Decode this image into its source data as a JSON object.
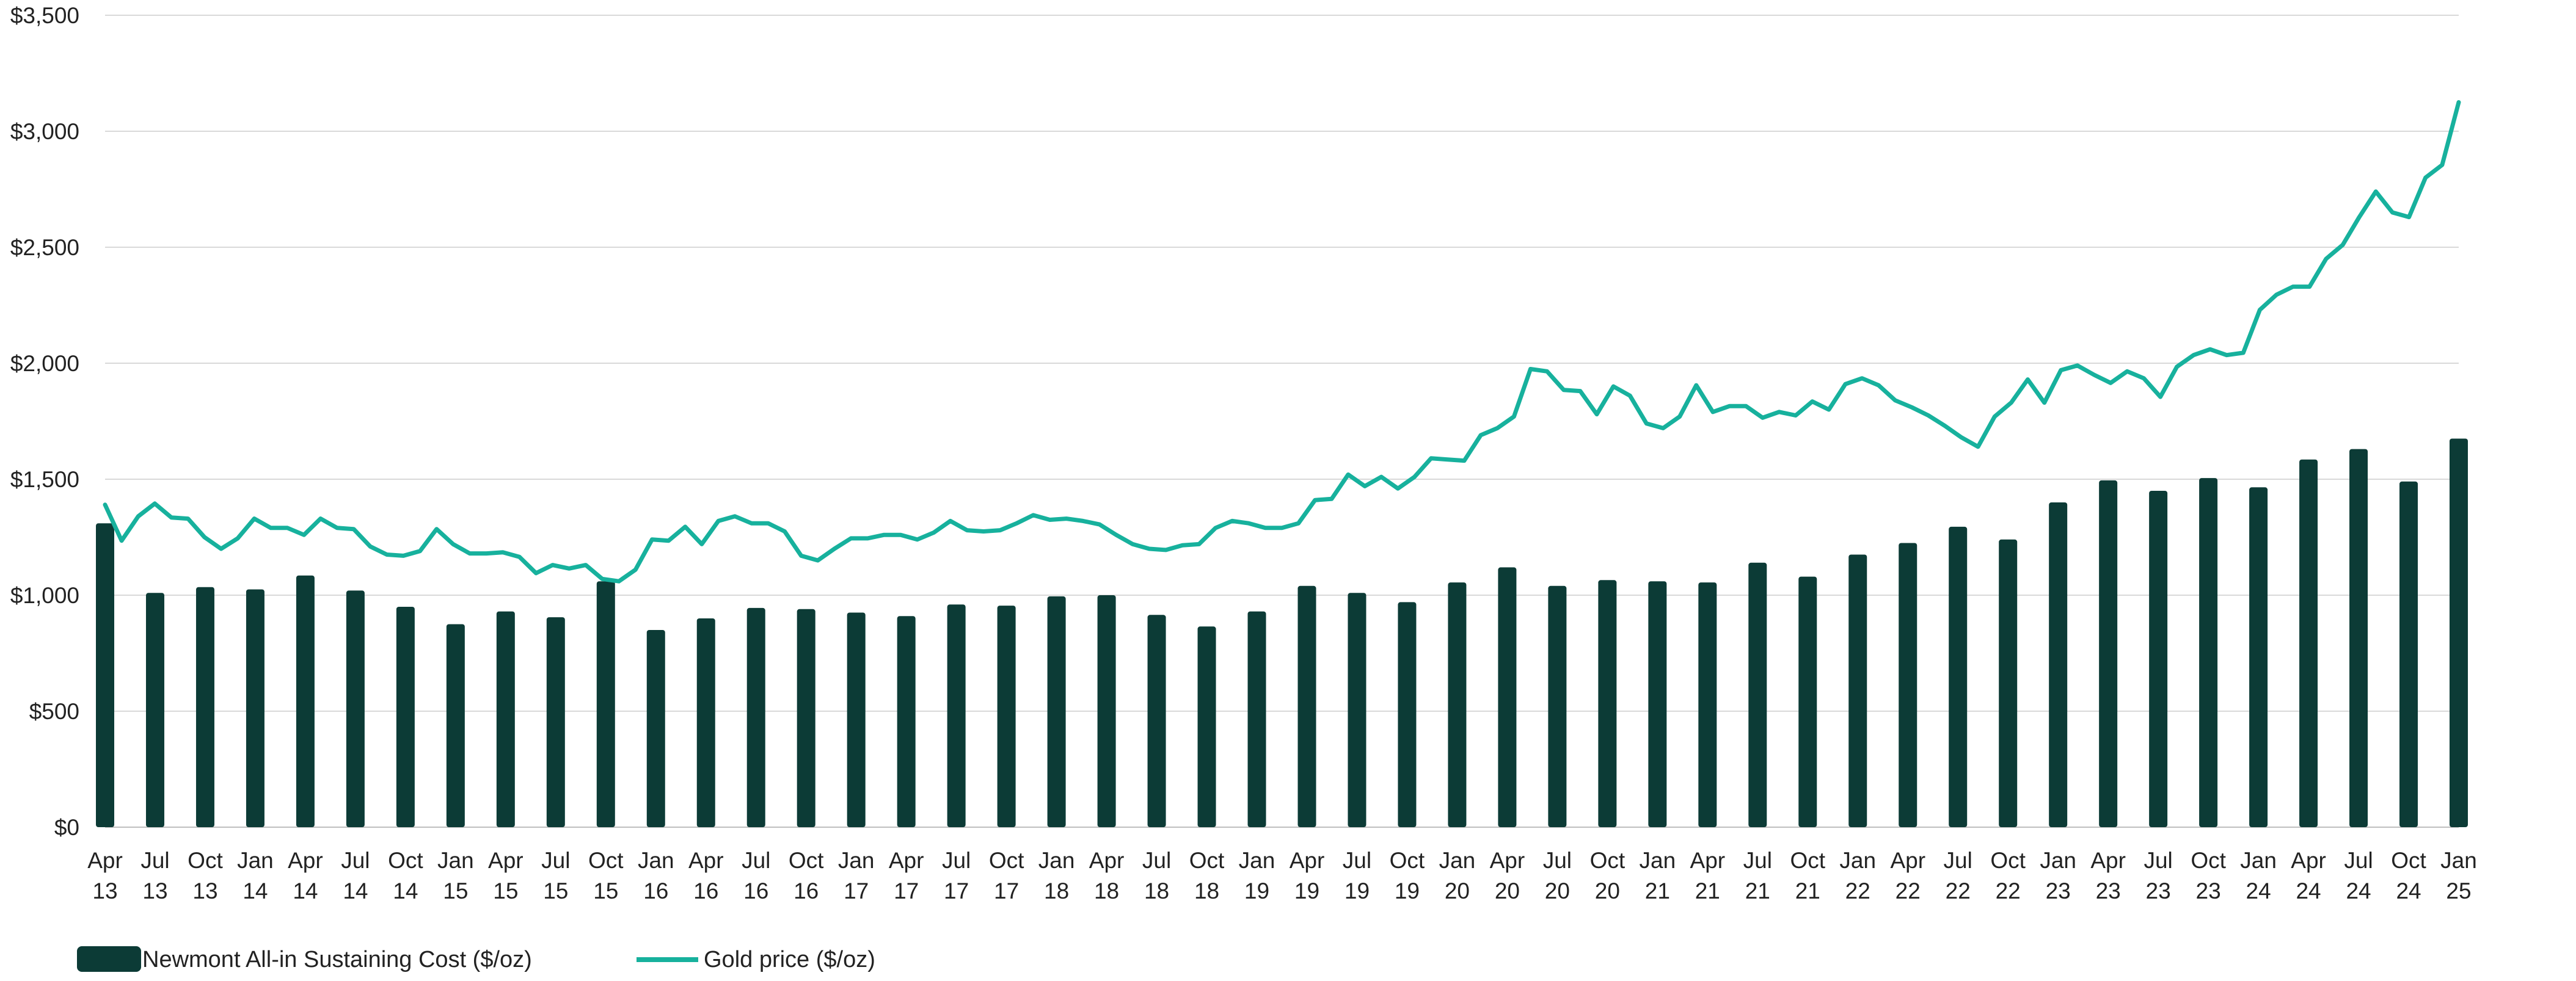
{
  "chart_data": {
    "type": "bar",
    "title": "",
    "xlabel": "",
    "ylabel": "",
    "ylim": [
      0,
      3500
    ],
    "y_ticks": [
      0,
      500,
      1000,
      1500,
      2000,
      2500,
      3000,
      3500
    ],
    "y_tick_labels": [
      "$0",
      "$500",
      "$1,000",
      "$1,500",
      "$2,000",
      "$2,500",
      "$3,000",
      "$3,500"
    ],
    "grid": true,
    "legend_position": "bottom-left",
    "colors": {
      "bars": "#0c3b36",
      "line": "#17b19d"
    },
    "quarters": [
      "Apr 13",
      "Jul 13",
      "Oct 13",
      "Jan 14",
      "Apr 14",
      "Jul 14",
      "Oct 14",
      "Jan 15",
      "Apr 15",
      "Jul 15",
      "Oct 15",
      "Jan 16",
      "Apr 16",
      "Jul 16",
      "Oct 16",
      "Jan 17",
      "Apr 17",
      "Jul 17",
      "Oct 17",
      "Jan 18",
      "Apr 18",
      "Jul 18",
      "Oct 18",
      "Jan 19",
      "Apr 19",
      "Jul 19",
      "Oct 19",
      "Jan 20",
      "Apr 20",
      "Jul 20",
      "Oct 20",
      "Jan 21",
      "Apr 21",
      "Jul 21",
      "Oct 21",
      "Jan 22",
      "Apr 22",
      "Jul 22",
      "Oct 22",
      "Jan 23",
      "Apr 23",
      "Jul 23",
      "Oct 23",
      "Jan 24",
      "Apr 24",
      "Jul 24",
      "Oct 24",
      "Jan 25"
    ],
    "series": [
      {
        "name": "Newmont All-in Sustaining Cost ($/oz)",
        "type": "bar",
        "values": [
          1310,
          1010,
          1035,
          1025,
          1085,
          1020,
          950,
          875,
          930,
          905,
          1060,
          850,
          900,
          945,
          940,
          925,
          910,
          960,
          955,
          995,
          1000,
          915,
          865,
          930,
          1040,
          1010,
          970,
          1055,
          1120,
          1040,
          1065,
          1060,
          1055,
          1140,
          1080,
          1175,
          1225,
          1295,
          1240,
          1400,
          1495,
          1450,
          1505,
          1465,
          1585,
          1630,
          1490,
          1675
        ]
      },
      {
        "name": "Gold price ($/oz)",
        "type": "line",
        "values": [
          1390,
          1235,
          1340,
          1395,
          1335,
          1330,
          1250,
          1200,
          1245,
          1330,
          1290,
          1290,
          1260,
          1330,
          1290,
          1285,
          1210,
          1175,
          1170,
          1190,
          1285,
          1220,
          1180,
          1180,
          1185,
          1165,
          1095,
          1130,
          1115,
          1130,
          1070,
          1060,
          1110,
          1240,
          1235,
          1295,
          1220,
          1320,
          1340,
          1310,
          1310,
          1275,
          1170,
          1150,
          1200,
          1245,
          1245,
          1260,
          1260,
          1240,
          1270,
          1320,
          1280,
          1275,
          1280,
          1310,
          1345,
          1325,
          1330,
          1320,
          1305,
          1260,
          1220,
          1200,
          1195,
          1215,
          1220,
          1290,
          1320,
          1310,
          1290,
          1290,
          1310,
          1410,
          1415,
          1520,
          1470,
          1510,
          1460,
          1510,
          1590,
          1585,
          1580,
          1690,
          1720,
          1770,
          1975,
          1965,
          1885,
          1880,
          1780,
          1900,
          1860,
          1740,
          1720,
          1770,
          1905,
          1790,
          1815,
          1815,
          1765,
          1790,
          1775,
          1835,
          1800,
          1910,
          1935,
          1905,
          1840,
          1810,
          1775,
          1730,
          1680,
          1640,
          1770,
          1830,
          1930,
          1830,
          1970,
          1990,
          1950,
          1915,
          1965,
          1935,
          1855,
          1985,
          2035,
          2060,
          2035,
          2045,
          2230,
          2295,
          2330,
          2330,
          2450,
          2510,
          2630,
          2740,
          2650,
          2630,
          2800,
          2855,
          3125
        ]
      }
    ]
  }
}
